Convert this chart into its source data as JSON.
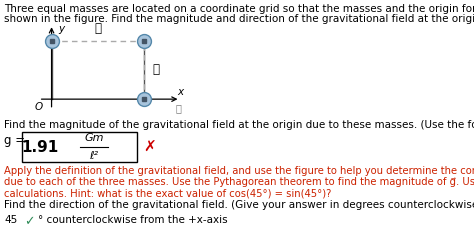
{
  "title_line1": "Three equal masses are located on a coordinate grid so that the masses and the origin form a square with side length ℓ, as",
  "title_line2": "shown in the figure. Find the magnitude and direction of the gravitational field at the origin due to these masses.",
  "fig_label_ell_horiz": "ℓ",
  "fig_label_ell_vert": "ℓ",
  "fig_x_label": "x",
  "fig_y_label": "y",
  "fig_origin_label": "O",
  "magnitude_question": "Find the magnitude of the gravitational field at the origin due to these masses. (Use the following as necessary: m, ℓ, and G.)",
  "answer_prefix": "g =",
  "answer_value": "1.91",
  "answer_formula_num": "Gm",
  "answer_formula_den": "ℓ²",
  "wrong_icon": "✗",
  "hint_line1": "Apply the definition of the gravitational field, and use the figure to help you determine the components for the vector fields",
  "hint_line2": "due to each of the three masses. Use the Pythagorean theorem to find the magnitude of g⃗. Use exact values for all your",
  "hint_line3": "calculations. Hint: what is the exact value of cos(45°) = sin(45°)?",
  "direction_label": "Find the direction of the gravitational field. (Give your answer in degrees counterclockwise from the +x-axis.)",
  "direction_value": "45",
  "direction_unit": "° counterclockwise from the +x-axis",
  "check_color": "#2e8b57",
  "hint_color": "#cc2200",
  "wrong_color": "#cc0000",
  "box_color": "#000000",
  "mass_fill": "#a8c4dc",
  "mass_edge": "#5588aa",
  "axis_color": "#000000",
  "dashed_color": "#aaaaaa",
  "line_color": "#555555",
  "info_color": "#777777",
  "bg_color": "#ffffff",
  "title_fontsize": 7.5,
  "body_fontsize": 7.5,
  "small_fontsize": 7.2
}
